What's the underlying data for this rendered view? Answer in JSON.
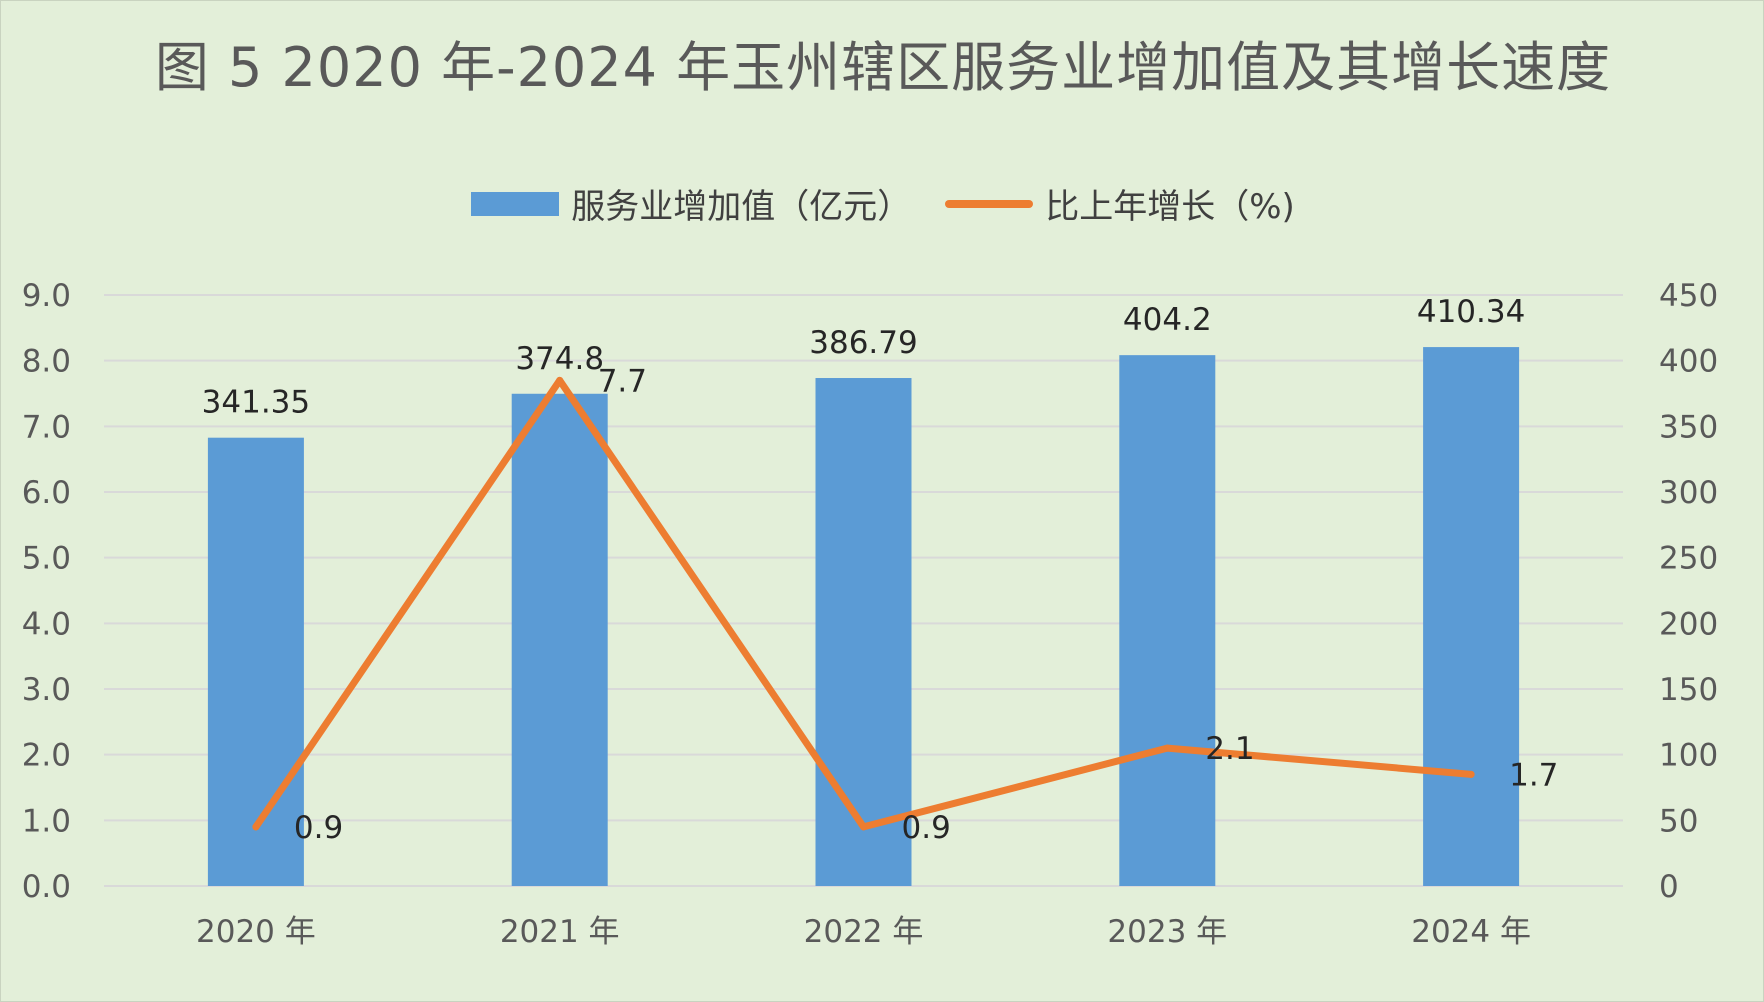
{
  "chart_data": {
    "type": "bar",
    "title": "图 5 2020 年-2024 年玉州辖区服务业增加值及其增长速度",
    "categories": [
      "2020 年",
      "2021 年",
      "2022 年",
      "2023 年",
      "2024 年"
    ],
    "series": [
      {
        "name": "服务业增加值（亿元）",
        "type": "bar",
        "axis": "right",
        "values": [
          341.35,
          374.8,
          386.79,
          404.2,
          410.34
        ],
        "labels": [
          "341.35",
          "374.8",
          "386.79",
          "404.2",
          "410.34"
        ],
        "color": "#5b9bd5"
      },
      {
        "name": "比上年增长（%)",
        "type": "line",
        "axis": "left",
        "values": [
          0.9,
          7.7,
          0.9,
          2.1,
          1.7
        ],
        "labels": [
          "0.9",
          "7.7",
          "0.9",
          "2.1",
          "1.7"
        ],
        "color": "#ed7d31"
      }
    ],
    "left_axis": {
      "min": 0,
      "max": 9,
      "ticks": [
        0,
        1,
        2,
        3,
        4,
        5,
        6,
        7,
        8,
        9
      ],
      "tick_labels": [
        "0.0",
        "1.0",
        "2.0",
        "3.0",
        "4.0",
        "5.0",
        "6.0",
        "7.0",
        "8.0",
        "9.0"
      ]
    },
    "right_axis": {
      "min": 0,
      "max": 450,
      "ticks": [
        0,
        50,
        100,
        150,
        200,
        250,
        300,
        350,
        400,
        450
      ],
      "tick_labels": [
        "0",
        "50",
        "100",
        "150",
        "200",
        "250",
        "300",
        "350",
        "400",
        "450"
      ]
    },
    "legend_position": "top",
    "grid": true,
    "background_color": "#e3efd9",
    "gridline_color": "#d9d9d9"
  }
}
